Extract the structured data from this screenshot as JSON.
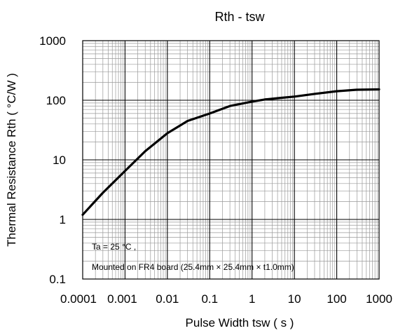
{
  "chart_data": {
    "type": "line",
    "title": "Rth - tsw",
    "xlabel": "Pulse Width tsw ( s )",
    "ylabel": "Thermal Resistance Rth ( °C/W )",
    "x_scale": "log",
    "y_scale": "log",
    "xlim": [
      0.0001,
      1000
    ],
    "ylim": [
      0.1,
      1000
    ],
    "grid": true,
    "x_tick_labels": [
      "0.0001",
      "0.001",
      "0.01",
      "0.1",
      "1",
      "10",
      "100",
      "1000"
    ],
    "y_tick_labels": [
      "0.1",
      "1",
      "10",
      "100",
      "1000"
    ],
    "annotations": [
      "Ta = 25 °C ,",
      "Mounted on FR4 board (25.4mm × 25.4mm × t1.0mm)"
    ],
    "series": [
      {
        "color": "#000000",
        "x": [
          0.0001,
          0.0003,
          0.001,
          0.003,
          0.01,
          0.03,
          0.1,
          0.3,
          1,
          2,
          5,
          10,
          30,
          100,
          300,
          1000
        ],
        "y": [
          1.2,
          2.8,
          6.5,
          14,
          28,
          45,
          60,
          80,
          95,
          103,
          110,
          115,
          128,
          142,
          150,
          152
        ]
      }
    ]
  }
}
